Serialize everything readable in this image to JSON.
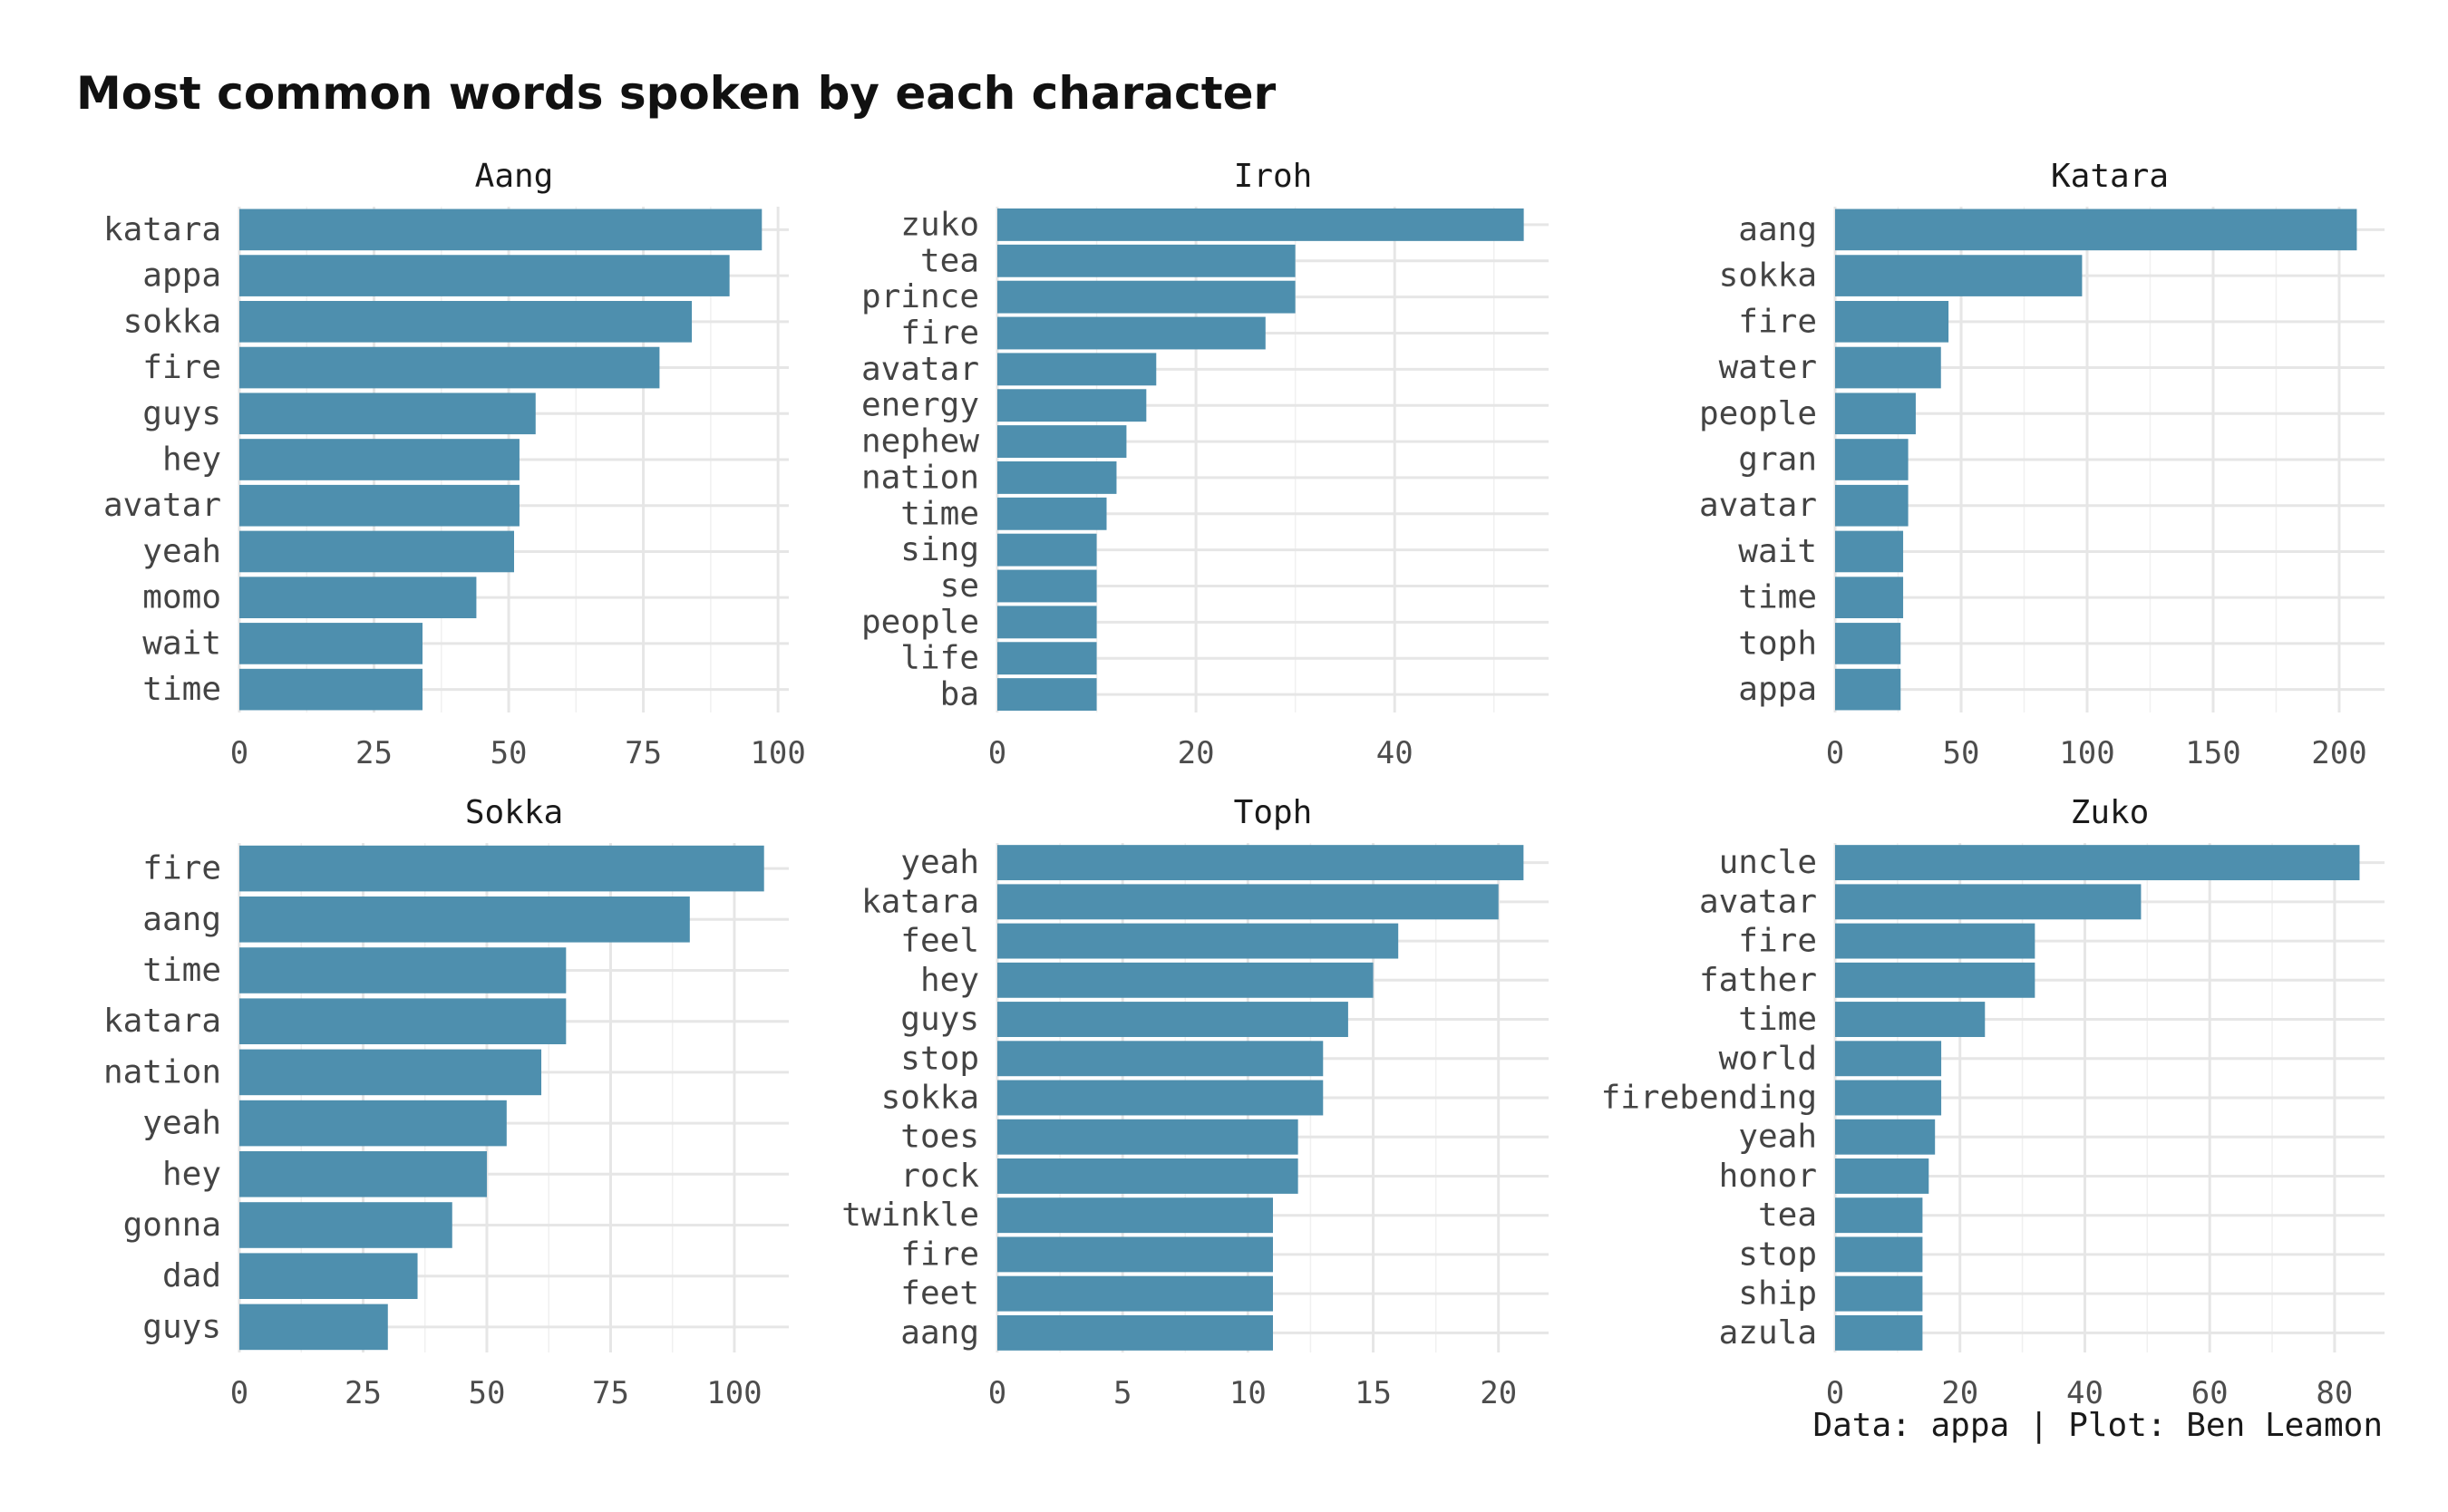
{
  "chart_data": {
    "type": "bar",
    "orientation": "horizontal",
    "title": "Most common words spoken by each character",
    "caption": "Data: appa | Plot: Ben Leamon",
    "bar_color": "#4e8fae",
    "grid": true,
    "facets": [
      {
        "name": "Aang",
        "xlim": [
          0,
          102
        ],
        "ticks": [
          0,
          25,
          50,
          75,
          100
        ],
        "categories": [
          "katara",
          "appa",
          "sokka",
          "fire",
          "guys",
          "hey",
          "avatar",
          "yeah",
          "momo",
          "wait",
          "time"
        ],
        "values": [
          97,
          91,
          84,
          78,
          55,
          52,
          52,
          51,
          44,
          34,
          34
        ]
      },
      {
        "name": "Iroh",
        "xlim": [
          0,
          55.5
        ],
        "ticks": [
          0,
          20,
          40
        ],
        "categories": [
          "zuko",
          "tea",
          "prince",
          "fire",
          "avatar",
          "energy",
          "nephew",
          "nation",
          "time",
          "sing",
          "se",
          "people",
          "life",
          "ba"
        ],
        "values": [
          53,
          30,
          30,
          27,
          16,
          15,
          13,
          12,
          11,
          10,
          10,
          10,
          10,
          10
        ]
      },
      {
        "name": "Katara",
        "xlim": [
          0,
          218
        ],
        "ticks": [
          0,
          50,
          100,
          150,
          200
        ],
        "categories": [
          "aang",
          "sokka",
          "fire",
          "water",
          "people",
          "gran",
          "avatar",
          "wait",
          "time",
          "toph",
          "appa"
        ],
        "values": [
          207,
          98,
          45,
          42,
          32,
          29,
          29,
          27,
          27,
          26,
          26
        ]
      },
      {
        "name": "Sokka",
        "xlim": [
          0,
          111
        ],
        "ticks": [
          0,
          25,
          50,
          75,
          100
        ],
        "categories": [
          "fire",
          "aang",
          "time",
          "katara",
          "nation",
          "yeah",
          "hey",
          "gonna",
          "dad",
          "guys"
        ],
        "values": [
          106,
          91,
          66,
          66,
          61,
          54,
          50,
          43,
          36,
          30
        ]
      },
      {
        "name": "Toph",
        "xlim": [
          0,
          22
        ],
        "ticks": [
          0,
          5,
          10,
          15,
          20
        ],
        "categories": [
          "yeah",
          "katara",
          "feel",
          "hey",
          "guys",
          "stop",
          "sokka",
          "toes",
          "rock",
          "twinkle",
          "fire",
          "feet",
          "aang"
        ],
        "values": [
          21,
          20,
          16,
          15,
          14,
          13,
          13,
          12,
          12,
          11,
          11,
          11,
          11
        ]
      },
      {
        "name": "Zuko",
        "xlim": [
          0,
          88
        ],
        "ticks": [
          0,
          20,
          40,
          60,
          80
        ],
        "categories": [
          "uncle",
          "avatar",
          "fire",
          "father",
          "time",
          "world",
          "firebending",
          "yeah",
          "honor",
          "tea",
          "stop",
          "ship",
          "azula"
        ],
        "values": [
          84,
          49,
          32,
          32,
          24,
          17,
          17,
          16,
          15,
          14,
          14,
          14,
          14
        ]
      }
    ]
  }
}
